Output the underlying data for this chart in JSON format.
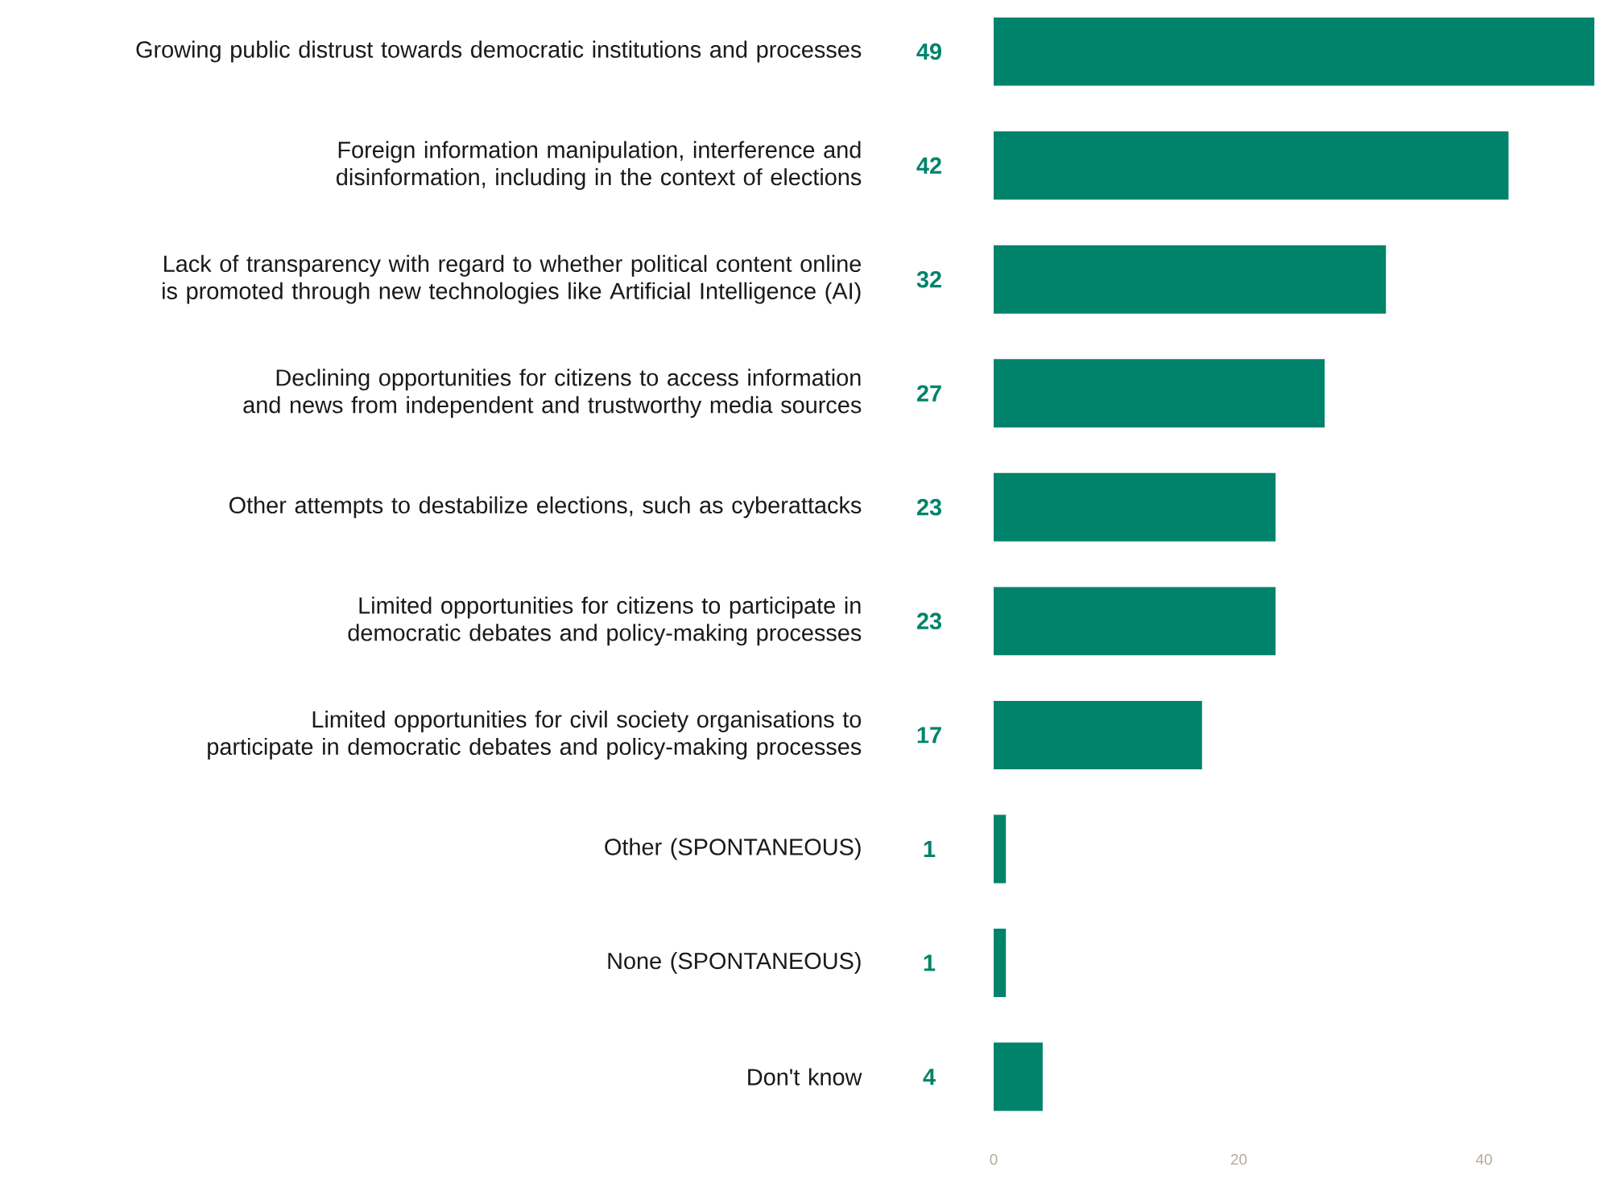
{
  "chart_data": {
    "type": "bar",
    "orientation": "horizontal",
    "data_labels": true,
    "color": "#00836b",
    "categories": [
      "Growing public distrust towards democratic institutions and processes",
      "Foreign information manipulation, interference and disinformation, including in the context of elections",
      "Lack of transparency with regard to whether political content online is promoted through new technologies like Artificial Intelligence (AI)",
      "Declining opportunities for citizens to access information and news from independent and trustworthy media sources",
      "Other attempts to destabilize elections, such as cyberattacks",
      "Limited opportunities for citizens to participate in democratic debates and policy-making processes",
      "Limited opportunities for civil society organisations to participate in democratic debates and policy-making processes",
      "Other (SPONTANEOUS)",
      "None (SPONTANEOUS)",
      "Don't know"
    ],
    "values": [
      49,
      42,
      32,
      27,
      23,
      23,
      17,
      1,
      1,
      4
    ],
    "xlim": [
      0,
      49
    ],
    "xticks": [
      0,
      20,
      40
    ]
  }
}
